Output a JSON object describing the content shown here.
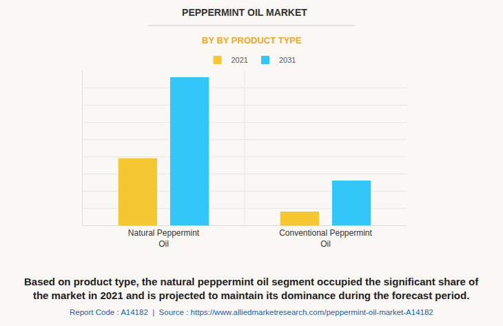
{
  "chart_data": {
    "type": "bar",
    "title": "PEPPERMINT OIL MARKET",
    "subtitle": "BY BY PRODUCT TYPE",
    "categories": [
      "Natural Peppermint Oil",
      "Conventional Peppermint Oil"
    ],
    "series": [
      {
        "name": "2021",
        "color": "#f5c832",
        "values": [
          3.9,
          0.8
        ]
      },
      {
        "name": "2031",
        "color": "#33c6f9",
        "values": [
          8.6,
          2.6
        ]
      }
    ],
    "ylim": [
      0,
      9
    ],
    "yticks": [
      0,
      1,
      2,
      3,
      4,
      5,
      6,
      7,
      8,
      9
    ],
    "grid": true,
    "legend": "top",
    "tick_labels": "x",
    "annotations": [
      "Based on product type, the natural peppermint oil segment occupied the significant share of the market in 2021 and is projected to maintain its dominance during the forecast period.",
      "Report Code : A14182  |  Source : https://www.alliedmarketresearch.com/peppermint-oil-market-A14182"
    ]
  }
}
